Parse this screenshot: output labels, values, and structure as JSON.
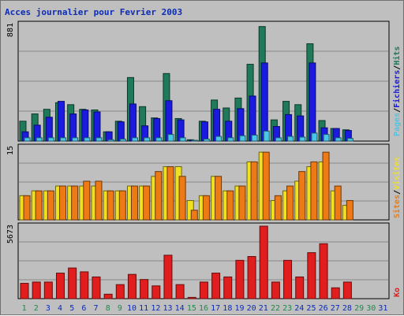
{
  "title": "Acces journalier pour Fevrier 2003",
  "colors": {
    "background": "#bfbfbf",
    "pages": "#49c7e8",
    "fichiers": "#1a1ae0",
    "hits": "#1f7a5a",
    "sites": "#ee7a16",
    "visites": "#f0e020",
    "ko": "#e21d1d",
    "weekend_label": "#1f8a4c",
    "weekday_label": "#0b2bb8"
  },
  "legends": {
    "top": [
      "Pages",
      "/",
      "Fichiers",
      "/",
      "Hits"
    ],
    "middle": [
      "Sites",
      "/",
      "Visites"
    ],
    "bottom": [
      "Ko"
    ]
  },
  "chart_data": [
    {
      "type": "bar",
      "name": "hits-fichiers-pages",
      "ymax_label": "881",
      "ymax": 881,
      "categories": [
        "1",
        "2",
        "3",
        "4",
        "5",
        "6",
        "7",
        "8",
        "9",
        "10",
        "11",
        "12",
        "13",
        "14",
        "15",
        "16",
        "17",
        "18",
        "19",
        "20",
        "21",
        "22",
        "23",
        "24",
        "25",
        "26",
        "27",
        "28",
        "29",
        "30",
        "31"
      ],
      "series": [
        {
          "name": "Hits",
          "values": [
            150,
            205,
            240,
            290,
            275,
            240,
            235,
            70,
            150,
            480,
            260,
            175,
            510,
            170,
            10,
            150,
            310,
            250,
            325,
            580,
            865,
            160,
            300,
            275,
            735,
            155,
            95,
            85,
            null,
            null,
            null
          ]
        },
        {
          "name": "Fichiers",
          "values": [
            70,
            120,
            180,
            300,
            205,
            235,
            220,
            70,
            145,
            280,
            115,
            170,
            305,
            160,
            5,
            145,
            240,
            150,
            245,
            340,
            590,
            110,
            200,
            190,
            590,
            100,
            95,
            80,
            null,
            null,
            null
          ]
        },
        {
          "name": "Pages",
          "values": [
            25,
            25,
            25,
            25,
            25,
            25,
            25,
            10,
            15,
            25,
            25,
            25,
            50,
            25,
            5,
            15,
            35,
            25,
            40,
            45,
            75,
            25,
            35,
            30,
            60,
            50,
            25,
            20,
            null,
            null,
            null
          ]
        }
      ]
    },
    {
      "type": "bar",
      "name": "visites-sites",
      "ymax_label": "15",
      "ymax": 15,
      "categories": [
        "1",
        "2",
        "3",
        "4",
        "5",
        "6",
        "7",
        "8",
        "9",
        "10",
        "11",
        "12",
        "13",
        "14",
        "15",
        "16",
        "17",
        "18",
        "19",
        "20",
        "21",
        "22",
        "23",
        "24",
        "25",
        "26",
        "27",
        "28",
        "29",
        "30",
        "31"
      ],
      "series": [
        {
          "name": "Visites",
          "values": [
            5,
            6,
            6,
            7,
            7,
            7,
            7,
            6,
            6,
            7,
            7,
            9,
            11,
            11,
            4,
            5,
            9,
            6,
            7,
            12,
            14,
            4,
            6,
            8,
            11,
            12,
            6,
            3,
            null,
            null,
            null
          ]
        },
        {
          "name": "Sites",
          "values": [
            5,
            6,
            6,
            7,
            7,
            8,
            8,
            6,
            6,
            7,
            7,
            10,
            11,
            9,
            2,
            5,
            9,
            6,
            7,
            12,
            14,
            5,
            7,
            10,
            12,
            14,
            7,
            4,
            null,
            null,
            null
          ]
        }
      ]
    },
    {
      "type": "bar",
      "name": "ko",
      "ymax_label": "5673",
      "ymax": 5673,
      "categories": [
        "1",
        "2",
        "3",
        "4",
        "5",
        "6",
        "7",
        "8",
        "9",
        "10",
        "11",
        "12",
        "13",
        "14",
        "15",
        "16",
        "17",
        "18",
        "19",
        "20",
        "21",
        "22",
        "23",
        "24",
        "25",
        "26",
        "27",
        "28",
        "29",
        "30",
        "31"
      ],
      "series": [
        {
          "name": "Ko",
          "values": [
            1200,
            1300,
            1300,
            2000,
            2400,
            2100,
            1700,
            350,
            1100,
            1900,
            1500,
            1000,
            3400,
            1100,
            100,
            1300,
            2000,
            1700,
            3000,
            3300,
            5673,
            1300,
            3000,
            1700,
            3600,
            4300,
            850,
            1300,
            null,
            null,
            null
          ]
        }
      ]
    }
  ],
  "x_labels": [
    {
      "text": "1",
      "weekend": true
    },
    {
      "text": "2",
      "weekend": true
    },
    {
      "text": "3",
      "weekend": false
    },
    {
      "text": "4",
      "weekend": false
    },
    {
      "text": "5",
      "weekend": false
    },
    {
      "text": "6",
      "weekend": false
    },
    {
      "text": "7",
      "weekend": false
    },
    {
      "text": "8",
      "weekend": true
    },
    {
      "text": "9",
      "weekend": true
    },
    {
      "text": "10",
      "weekend": false
    },
    {
      "text": "11",
      "weekend": false
    },
    {
      "text": "12",
      "weekend": false
    },
    {
      "text": "13",
      "weekend": false
    },
    {
      "text": "14",
      "weekend": false
    },
    {
      "text": "15",
      "weekend": true
    },
    {
      "text": "16",
      "weekend": true
    },
    {
      "text": "17",
      "weekend": false
    },
    {
      "text": "18",
      "weekend": false
    },
    {
      "text": "19",
      "weekend": false
    },
    {
      "text": "20",
      "weekend": false
    },
    {
      "text": "21",
      "weekend": false
    },
    {
      "text": "22",
      "weekend": true
    },
    {
      "text": "23",
      "weekend": true
    },
    {
      "text": "24",
      "weekend": false
    },
    {
      "text": "25",
      "weekend": false
    },
    {
      "text": "26",
      "weekend": false
    },
    {
      "text": "27",
      "weekend": false
    },
    {
      "text": "28",
      "weekend": false
    },
    {
      "text": "29",
      "weekend": true
    },
    {
      "text": "30",
      "weekend": true
    },
    {
      "text": "31",
      "weekend": false
    }
  ]
}
